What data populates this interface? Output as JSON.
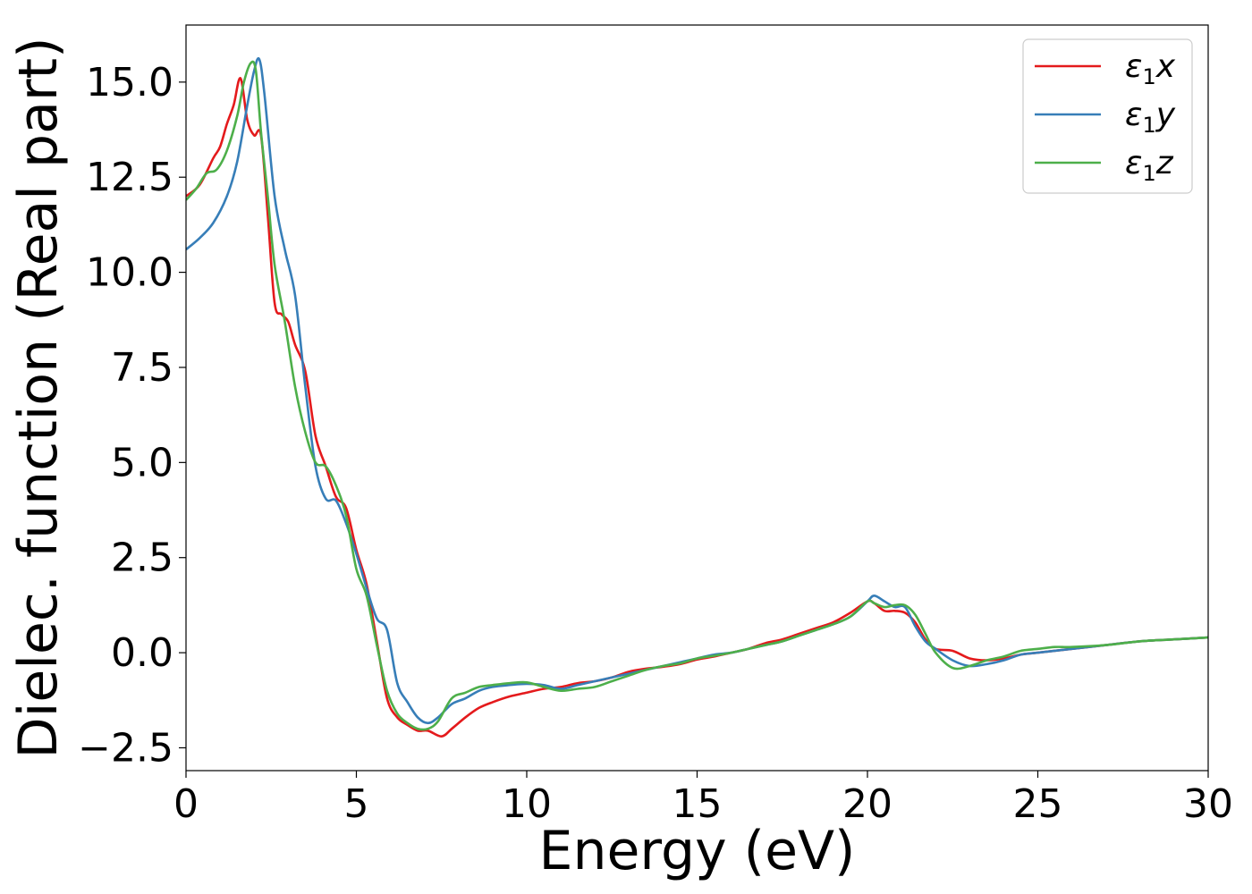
{
  "chart_data": {
    "type": "line",
    "title": "",
    "xlabel": "Energy (eV)",
    "ylabel": "Dielec. function (Real part)",
    "xlim": [
      0,
      30
    ],
    "ylim": [
      -3.1,
      16.5
    ],
    "xticks": [
      0,
      5,
      10,
      15,
      20,
      25,
      30
    ],
    "xtick_labels": [
      "0",
      "5",
      "10",
      "15",
      "20",
      "25",
      "30"
    ],
    "yticks": [
      -2.5,
      0.0,
      2.5,
      5.0,
      7.5,
      10.0,
      12.5,
      15.0
    ],
    "ytick_labels": [
      "−2.5",
      "0.0",
      "2.5",
      "5.0",
      "7.5",
      "10.0",
      "12.5",
      "15.0"
    ],
    "grid": false,
    "legend_position": "top-right",
    "series": [
      {
        "name": "ε₁x",
        "legend_main": "ε",
        "legend_sub": "1",
        "legend_var": "x",
        "color": "#e41a1c",
        "x": [
          0,
          0.4,
          0.8,
          1.0,
          1.2,
          1.4,
          1.6,
          1.8,
          2.0,
          2.2,
          2.4,
          2.6,
          2.8,
          3.0,
          3.2,
          3.5,
          3.8,
          4.1,
          4.4,
          4.7,
          5.0,
          5.3,
          5.6,
          5.9,
          6.2,
          6.5,
          6.8,
          7.1,
          7.5,
          7.8,
          8.2,
          8.6,
          9.0,
          9.5,
          10.0,
          10.5,
          11.0,
          11.5,
          12.0,
          12.5,
          13.0,
          13.5,
          14.0,
          14.5,
          15.0,
          15.5,
          16.0,
          16.5,
          17.0,
          17.5,
          18.0,
          18.5,
          19.0,
          19.5,
          20.0,
          20.2,
          20.5,
          20.8,
          21.1,
          21.4,
          21.7,
          22.0,
          22.5,
          23.0,
          23.5,
          24.0,
          24.5,
          25.0,
          25.5,
          26.0,
          27.0,
          28.0,
          29.0,
          30.0
        ],
        "y": [
          12.0,
          12.3,
          13.0,
          13.3,
          13.9,
          14.4,
          15.1,
          14.0,
          13.6,
          13.6,
          11.5,
          9.2,
          8.9,
          8.7,
          8.1,
          7.4,
          5.7,
          4.9,
          4.1,
          3.8,
          2.7,
          1.8,
          0.3,
          -1.2,
          -1.7,
          -1.9,
          -2.05,
          -2.05,
          -2.2,
          -2.0,
          -1.7,
          -1.45,
          -1.3,
          -1.15,
          -1.05,
          -0.95,
          -0.9,
          -0.8,
          -0.75,
          -0.65,
          -0.5,
          -0.42,
          -0.37,
          -0.3,
          -0.18,
          -0.1,
          0.0,
          0.1,
          0.25,
          0.35,
          0.5,
          0.65,
          0.8,
          1.05,
          1.35,
          1.3,
          1.1,
          1.1,
          1.05,
          0.8,
          0.35,
          0.1,
          0.05,
          -0.15,
          -0.2,
          -0.15,
          -0.05,
          0.0,
          0.05,
          0.1,
          0.2,
          0.3,
          0.35,
          0.4
        ]
      },
      {
        "name": "ε₁y",
        "legend_main": "ε",
        "legend_sub": "1",
        "legend_var": "y",
        "color": "#377eb8",
        "x": [
          0,
          0.4,
          0.8,
          1.2,
          1.5,
          1.8,
          2.0,
          2.15,
          2.3,
          2.6,
          2.9,
          3.2,
          3.5,
          3.8,
          4.1,
          4.4,
          4.7,
          5.0,
          5.3,
          5.6,
          5.9,
          6.2,
          6.5,
          6.8,
          7.1,
          7.4,
          7.8,
          8.2,
          8.6,
          9.0,
          9.5,
          10.0,
          10.5,
          11.0,
          11.5,
          12.0,
          12.5,
          13.0,
          13.5,
          14.0,
          14.5,
          15.0,
          15.5,
          16.0,
          16.5,
          17.0,
          17.5,
          18.0,
          18.5,
          19.0,
          19.5,
          20.0,
          20.2,
          20.5,
          20.8,
          21.1,
          21.4,
          21.7,
          22.0,
          22.5,
          23.0,
          23.5,
          24.0,
          24.5,
          25.0,
          25.5,
          26.0,
          27.0,
          28.0,
          29.0,
          30.0
        ],
        "y": [
          10.6,
          10.9,
          11.3,
          12.0,
          12.9,
          14.4,
          15.3,
          15.6,
          14.7,
          12.0,
          10.6,
          9.4,
          7.0,
          4.9,
          4.05,
          4.0,
          3.4,
          2.6,
          1.7,
          0.9,
          0.6,
          -0.8,
          -1.3,
          -1.7,
          -1.85,
          -1.7,
          -1.35,
          -1.2,
          -1.0,
          -0.9,
          -0.85,
          -0.82,
          -0.85,
          -0.95,
          -0.85,
          -0.75,
          -0.65,
          -0.55,
          -0.45,
          -0.35,
          -0.25,
          -0.15,
          -0.05,
          0.0,
          0.1,
          0.2,
          0.3,
          0.45,
          0.6,
          0.75,
          0.95,
          1.35,
          1.5,
          1.35,
          1.2,
          1.2,
          0.7,
          0.3,
          0.1,
          -0.2,
          -0.35,
          -0.3,
          -0.2,
          -0.05,
          0.0,
          0.05,
          0.1,
          0.2,
          0.3,
          0.35,
          0.4
        ]
      },
      {
        "name": "ε₁z",
        "legend_main": "ε",
        "legend_sub": "1",
        "legend_var": "z",
        "color": "#4daf4a",
        "x": [
          0,
          0.3,
          0.6,
          0.9,
          1.2,
          1.5,
          1.7,
          1.9,
          2.05,
          2.2,
          2.4,
          2.6,
          2.9,
          3.2,
          3.5,
          3.8,
          4.1,
          4.4,
          4.7,
          5.0,
          5.3,
          5.6,
          5.9,
          6.2,
          6.5,
          6.8,
          7.1,
          7.4,
          7.8,
          8.2,
          8.6,
          9.0,
          9.5,
          10.0,
          10.5,
          11.0,
          11.5,
          12.0,
          12.5,
          13.0,
          13.5,
          14.0,
          14.5,
          15.0,
          15.5,
          16.0,
          16.5,
          17.0,
          17.5,
          18.0,
          18.5,
          19.0,
          19.5,
          20.0,
          20.2,
          20.5,
          20.8,
          21.1,
          21.4,
          21.7,
          22.0,
          22.5,
          23.0,
          23.5,
          24.0,
          24.5,
          25.0,
          25.5,
          26.0,
          27.0,
          28.0,
          29.0,
          30.0
        ],
        "y": [
          11.9,
          12.2,
          12.6,
          12.7,
          13.2,
          14.1,
          15.0,
          15.5,
          15.3,
          13.7,
          12.0,
          10.2,
          8.7,
          7.0,
          5.8,
          5.0,
          4.9,
          4.4,
          3.6,
          2.2,
          1.5,
          0.2,
          -1.0,
          -1.6,
          -1.85,
          -2.0,
          -2.0,
          -1.8,
          -1.2,
          -1.05,
          -0.9,
          -0.85,
          -0.8,
          -0.78,
          -0.9,
          -1.0,
          -0.95,
          -0.9,
          -0.75,
          -0.6,
          -0.45,
          -0.35,
          -0.28,
          -0.15,
          -0.08,
          0.0,
          0.1,
          0.2,
          0.3,
          0.45,
          0.6,
          0.75,
          0.95,
          1.35,
          1.3,
          1.2,
          1.25,
          1.25,
          1.0,
          0.5,
          0.0,
          -0.4,
          -0.35,
          -0.2,
          -0.1,
          0.05,
          0.1,
          0.15,
          0.15,
          0.2,
          0.3,
          0.35,
          0.4
        ]
      }
    ]
  }
}
